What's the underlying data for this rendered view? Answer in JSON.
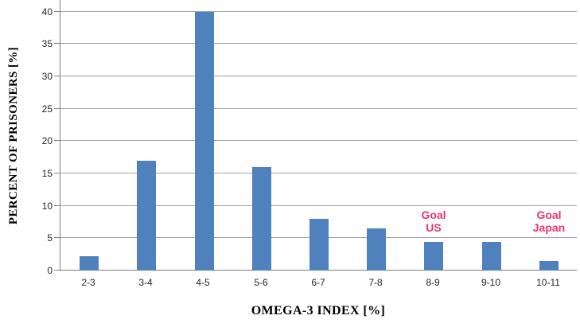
{
  "chart_data": {
    "type": "bar",
    "title": "",
    "xlabel": "OMEGA-3 INDEX [%]",
    "ylabel": "PERCENT OF PRISONERS [%]",
    "categories": [
      "2-3",
      "3-4",
      "4-5",
      "5-6",
      "6-7",
      "7-8",
      "8-9",
      "9-10",
      "10-11"
    ],
    "values": [
      2.2,
      17,
      40,
      16,
      8,
      6.5,
      4.4,
      4.4,
      1.5
    ],
    "ylim": [
      0,
      41.8
    ],
    "yticks": [
      0,
      5,
      10,
      15,
      20,
      25,
      30,
      35,
      40
    ],
    "grid": true,
    "legend": "none",
    "bar_color": "#4F81BD",
    "gridline_color": "#A3A3A3",
    "axis_color": "#7F7F7F",
    "tick_label_color": "#262626",
    "annotation_color": "#E8366E",
    "annotations": [
      {
        "lines": [
          "Goal",
          "US"
        ],
        "category_index": 6
      },
      {
        "lines": [
          "Goal",
          "Japan"
        ],
        "category_index": 8
      }
    ]
  }
}
